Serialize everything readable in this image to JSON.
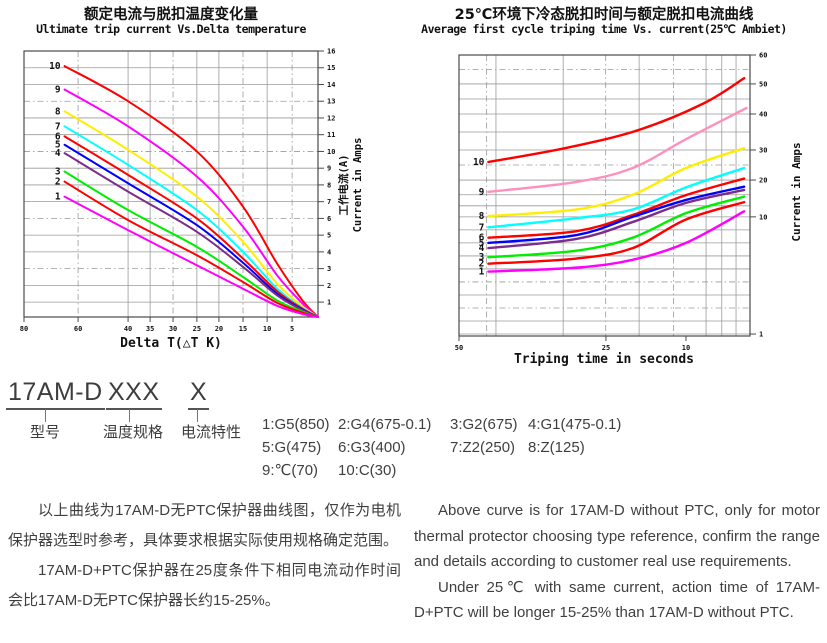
{
  "chart_data": [
    {
      "type": "line",
      "title_zh": "额定电流与脱扣温度变化量",
      "title_en": "Ultimate trip current Vs.Delta temperature",
      "xlabel": "Delta T(△T K)",
      "ylabel_zh": "工作电流(A)",
      "ylabel_en": "Current in Amps",
      "x_reversed": true,
      "xlim": [
        80,
        0
      ],
      "ylim": [
        0,
        16
      ],
      "x_ticks": [
        80,
        60,
        40,
        35,
        30,
        25,
        20,
        15,
        10,
        5
      ],
      "y_ticks": [
        16,
        15,
        14,
        13,
        12,
        11,
        10,
        9,
        8,
        7,
        6,
        5,
        4,
        3,
        2,
        1
      ],
      "x_map": [
        [
          80,
          0
        ],
        [
          60,
          0.184
        ],
        [
          40,
          0.354
        ],
        [
          35,
          0.429
        ],
        [
          30,
          0.507
        ],
        [
          25,
          0.588
        ],
        [
          20,
          0.663
        ],
        [
          15,
          0.745
        ],
        [
          10,
          0.827
        ],
        [
          5,
          0.912
        ],
        [
          0,
          1.0
        ]
      ],
      "y_map": [
        [
          16,
          0
        ],
        [
          1,
          0.944
        ],
        [
          0,
          1.0
        ]
      ],
      "grid": true,
      "legend_position": "curve-start-labels",
      "series": [
        {
          "name": "10",
          "color": "#ff0000",
          "points": [
            [
              65,
              15.1
            ],
            [
              40,
              13.0
            ],
            [
              25,
              10.0
            ],
            [
              15,
              6.7
            ],
            [
              8,
              3.3
            ],
            [
              3,
              1.1
            ],
            [
              0,
              0
            ]
          ]
        },
        {
          "name": "9",
          "color": "#ff00ff",
          "points": [
            [
              65,
              13.7
            ],
            [
              40,
              11.5
            ],
            [
              25,
              8.5
            ],
            [
              15,
              5.5
            ],
            [
              8,
              2.6
            ],
            [
              3,
              0.9
            ],
            [
              0,
              0
            ]
          ]
        },
        {
          "name": "8",
          "color": "#ffee00",
          "points": [
            [
              65,
              12.4
            ],
            [
              40,
              10.1
            ],
            [
              25,
              7.3
            ],
            [
              15,
              4.6
            ],
            [
              8,
              2.1
            ],
            [
              3,
              0.7
            ],
            [
              0,
              0
            ]
          ]
        },
        {
          "name": "7",
          "color": "#00ffff",
          "points": [
            [
              65,
              11.5
            ],
            [
              40,
              9.2
            ],
            [
              25,
              6.5
            ],
            [
              15,
              4.0
            ],
            [
              8,
              1.8
            ],
            [
              3,
              0.6
            ],
            [
              0,
              0
            ]
          ]
        },
        {
          "name": "6",
          "color": "#ff0000",
          "points": [
            [
              65,
              10.9
            ],
            [
              40,
              8.6
            ],
            [
              25,
              6.0
            ],
            [
              15,
              3.6
            ],
            [
              8,
              1.65
            ],
            [
              3,
              0.55
            ],
            [
              0,
              0
            ]
          ]
        },
        {
          "name": "5",
          "color": "#0000ff",
          "points": [
            [
              65,
              10.4
            ],
            [
              40,
              8.1
            ],
            [
              25,
              5.6
            ],
            [
              15,
              3.35
            ],
            [
              8,
              1.5
            ],
            [
              3,
              0.5
            ],
            [
              0,
              0
            ]
          ]
        },
        {
          "name": "4",
          "color": "#7b2d8b",
          "points": [
            [
              65,
              9.9
            ],
            [
              40,
              7.6
            ],
            [
              25,
              5.2
            ],
            [
              15,
              3.1
            ],
            [
              8,
              1.4
            ],
            [
              3,
              0.45
            ],
            [
              0,
              0
            ]
          ]
        },
        {
          "name": "3",
          "color": "#00ee00",
          "points": [
            [
              65,
              8.8
            ],
            [
              40,
              6.5
            ],
            [
              25,
              4.3
            ],
            [
              15,
              2.5
            ],
            [
              8,
              1.1
            ],
            [
              3,
              0.36
            ],
            [
              0,
              0
            ]
          ]
        },
        {
          "name": "2",
          "color": "#ff0000",
          "points": [
            [
              65,
              8.2
            ],
            [
              40,
              5.9
            ],
            [
              25,
              3.8
            ],
            [
              15,
              2.2
            ],
            [
              8,
              0.95
            ],
            [
              3,
              0.3
            ],
            [
              0,
              0
            ]
          ]
        },
        {
          "name": "1",
          "color": "#ff00ff",
          "points": [
            [
              65,
              7.3
            ],
            [
              40,
              5.3
            ],
            [
              25,
              3.2
            ],
            [
              15,
              1.8
            ],
            [
              8,
              0.75
            ],
            [
              3,
              0.2
            ],
            [
              0,
              0
            ]
          ]
        }
      ]
    },
    {
      "type": "line",
      "title_zh": "25℃环境下冷态脱扣时间与额定脱扣电流曲线",
      "title_en": "Average first cycle triping time Vs. current(25℃ Ambiet)",
      "xlabel": "Triping time in seconds",
      "ylabel_en": "Current in Amps",
      "x_reversed": true,
      "xlim": [
        50,
        4.5
      ],
      "ylim": [
        1,
        60
      ],
      "x_ticks": [
        50,
        25,
        10
      ],
      "y_ticks": [
        60,
        50,
        40,
        30,
        20,
        10,
        1
      ],
      "grid_y_minor": [
        55,
        45,
        35,
        25,
        16,
        13,
        9,
        8,
        7,
        6,
        5,
        4,
        3,
        2
      ],
      "x_map": [
        [
          50,
          0
        ],
        [
          25,
          0.505
        ],
        [
          10,
          0.78
        ],
        [
          4.5,
          1.0
        ]
      ],
      "y_map": [
        [
          60,
          0
        ],
        [
          50,
          0.103
        ],
        [
          40,
          0.21
        ],
        [
          30,
          0.338
        ],
        [
          20,
          0.445
        ],
        [
          10,
          0.576
        ],
        [
          1,
          0.993
        ]
      ],
      "grid": true,
      "legend_position": "curve-start-labels",
      "series": [
        {
          "name": "10",
          "color": "#ff0000",
          "points": [
            [
              45,
              26
            ],
            [
              32,
              30.5
            ],
            [
              19,
              35.5
            ],
            [
              8.5,
              43.5
            ],
            [
              5,
              52
            ]
          ]
        },
        {
          "name": "9",
          "color": "#ff8fbe",
          "points": [
            [
              45,
              16.8
            ],
            [
              30,
              19.5
            ],
            [
              20,
              24
            ],
            [
              10,
              33
            ],
            [
              4.8,
              42
            ]
          ]
        },
        {
          "name": "8",
          "color": "#ffee00",
          "points": [
            [
              45,
              10.2
            ],
            [
              30,
              12
            ],
            [
              20,
              16
            ],
            [
              10,
              24
            ],
            [
              5,
              30.5
            ]
          ]
        },
        {
          "name": "7",
          "color": "#00ffff",
          "points": [
            [
              45,
              9.2
            ],
            [
              30,
              9.9
            ],
            [
              20,
              12
            ],
            [
              10,
              18
            ],
            [
              5,
              24
            ]
          ]
        },
        {
          "name": "6",
          "color": "#ff0000",
          "points": [
            [
              45,
              8.4
            ],
            [
              30,
              8.9
            ],
            [
              20,
              10.5
            ],
            [
              10,
              15.9
            ],
            [
              5,
              20.5
            ]
          ]
        },
        {
          "name": "5",
          "color": "#0000ff",
          "points": [
            [
              45,
              8.0
            ],
            [
              30,
              8.6
            ],
            [
              20,
              10
            ],
            [
              10,
              14.6
            ],
            [
              5,
              18.2
            ]
          ]
        },
        {
          "name": "4",
          "color": "#7b2d8b",
          "points": [
            [
              45,
              7.6
            ],
            [
              30,
              8.3
            ],
            [
              20,
              9.6
            ],
            [
              10,
              13.8
            ],
            [
              5,
              17.3
            ]
          ]
        },
        {
          "name": "3",
          "color": "#00ee00",
          "points": [
            [
              45,
              6.9
            ],
            [
              30,
              7.4
            ],
            [
              20,
              8.4
            ],
            [
              10,
              11
            ],
            [
              5,
              15.5
            ]
          ]
        },
        {
          "name": "2",
          "color": "#ff0000",
          "points": [
            [
              45,
              6.4
            ],
            [
              30,
              6.8
            ],
            [
              20,
              7.6
            ],
            [
              10,
              9.8
            ],
            [
              5,
              14
            ]
          ]
        },
        {
          "name": "1",
          "color": "#ff00ff",
          "points": [
            [
              45,
              5.8
            ],
            [
              30,
              6.1
            ],
            [
              20,
              6.7
            ],
            [
              10,
              8
            ],
            [
              5,
              11.5
            ]
          ]
        }
      ]
    }
  ],
  "part_number": {
    "model": "17AM-D",
    "temp_placeholder": "XXX",
    "current_placeholder": "X",
    "model_label": "型号",
    "temp_label": "温度规格",
    "current_label": "电流特性",
    "codes": [
      [
        "1:G5(850)",
        "2:G4(675-0.1)",
        "3:G2(675)",
        "4:G1(475-0.1)"
      ],
      [
        "5:G(475)",
        "6:G3(400)",
        "7:Z2(250)",
        "8:Z(125)"
      ],
      [
        "9:℃(70)",
        "10:C(30)"
      ]
    ]
  },
  "notes": {
    "zh": [
      "以上曲线为17AM-D无PTC保护器曲线图，仅作为电机保护器选型时参考，具体要求根据实际使用规格确定范围。",
      "17AM-D+PTC保护器在25度条件下相同电流动作时间会比17AM-D无PTC保护器长约15-25%。"
    ],
    "en": [
      "Above curve is for 17AM-D without PTC, only for motor thermal protector choosing type reference, confirm the range and details according to customer real use requirements.",
      "Under 25℃ with same current, action time of 17AM-D+PTC will be longer 15-25% than 17AM-D without PTC."
    ]
  },
  "colors": {
    "grid": "#9a9a9a",
    "border": "#4a4a4a",
    "text": "#3f3f3f"
  }
}
